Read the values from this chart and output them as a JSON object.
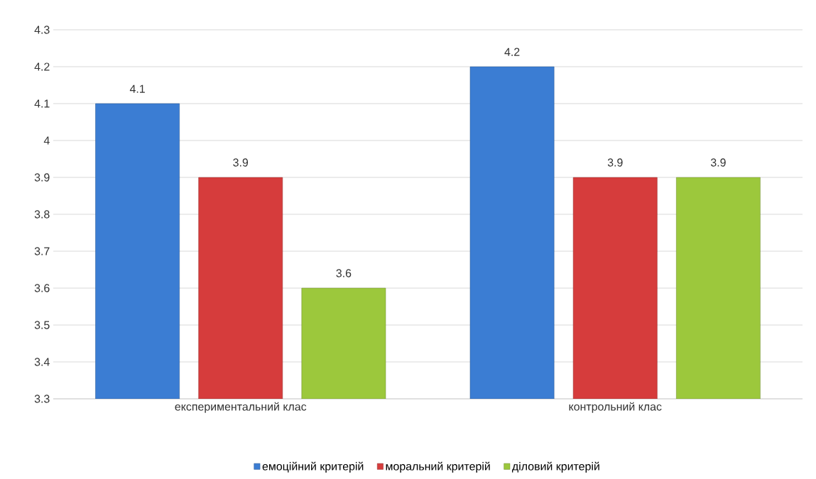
{
  "chart_data": {
    "type": "bar",
    "categories": [
      "експериментальний клас",
      "контрольний клас"
    ],
    "series": [
      {
        "name": "емоційний критерій",
        "color": "#3b7dd3",
        "values": [
          4.1,
          4.2
        ]
      },
      {
        "name": "моральний критерій",
        "color": "#d63c3c",
        "values": [
          3.9,
          3.9
        ]
      },
      {
        "name": "діловий критерій",
        "color": "#9cc83c",
        "values": [
          3.6,
          3.9
        ]
      }
    ],
    "ylim": [
      3.3,
      4.3
    ],
    "yticks": [
      3.3,
      3.4,
      3.5,
      3.6,
      3.7,
      3.8,
      3.9,
      4,
      4.1,
      4.2,
      4.3
    ],
    "grid": "y",
    "legend": "bottom",
    "data_labels": true
  }
}
